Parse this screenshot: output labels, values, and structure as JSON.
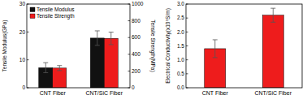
{
  "chart_data": [
    {
      "type": "bar",
      "categories": [
        "CNT Fiber",
        "CNT/SiC Fiber"
      ],
      "ylabel": "Tensile Modulus(GPa)",
      "y2label": "Tensile Strength(MPa)",
      "ylim": [
        0,
        30
      ],
      "yticks": [
        0,
        10,
        20,
        30
      ],
      "y2lim": [
        0,
        1000
      ],
      "y2ticks": [
        0,
        200,
        400,
        600,
        800,
        1000
      ],
      "legend": "upper left",
      "series": [
        {
          "name": "Tensile Modulus",
          "color": "#111111",
          "values": [
            7.2,
            17.8
          ],
          "errors": [
            1.8,
            2.6
          ]
        },
        {
          "name": "Tensile Strength",
          "color": "#ee1c1c",
          "values": [
            235,
            590
          ],
          "errors": [
            30,
            75
          ],
          "axis": "y2"
        }
      ]
    },
    {
      "type": "bar",
      "categories": [
        "CNT Fiber",
        "CNT/SiC Fiber"
      ],
      "ylabel": "Electrical Conductivity(x10⁵S/m)",
      "ylim": [
        0,
        3
      ],
      "yticks": [
        {
          "value": 0,
          "label": "0.0"
        },
        {
          "value": 0.5,
          "label": "0.5"
        },
        {
          "value": 1,
          "label": "1.0"
        },
        {
          "value": 1.5,
          "label": "1.5"
        },
        {
          "value": 2,
          "label": "2.0"
        },
        {
          "value": 2.5,
          "label": "2.5"
        },
        {
          "value": 3,
          "label": "3.0"
        }
      ],
      "series": [
        {
          "color": "#ee1c1c",
          "values": [
            1.4,
            2.6
          ],
          "errors": [
            0.32,
            0.25
          ]
        }
      ]
    }
  ]
}
